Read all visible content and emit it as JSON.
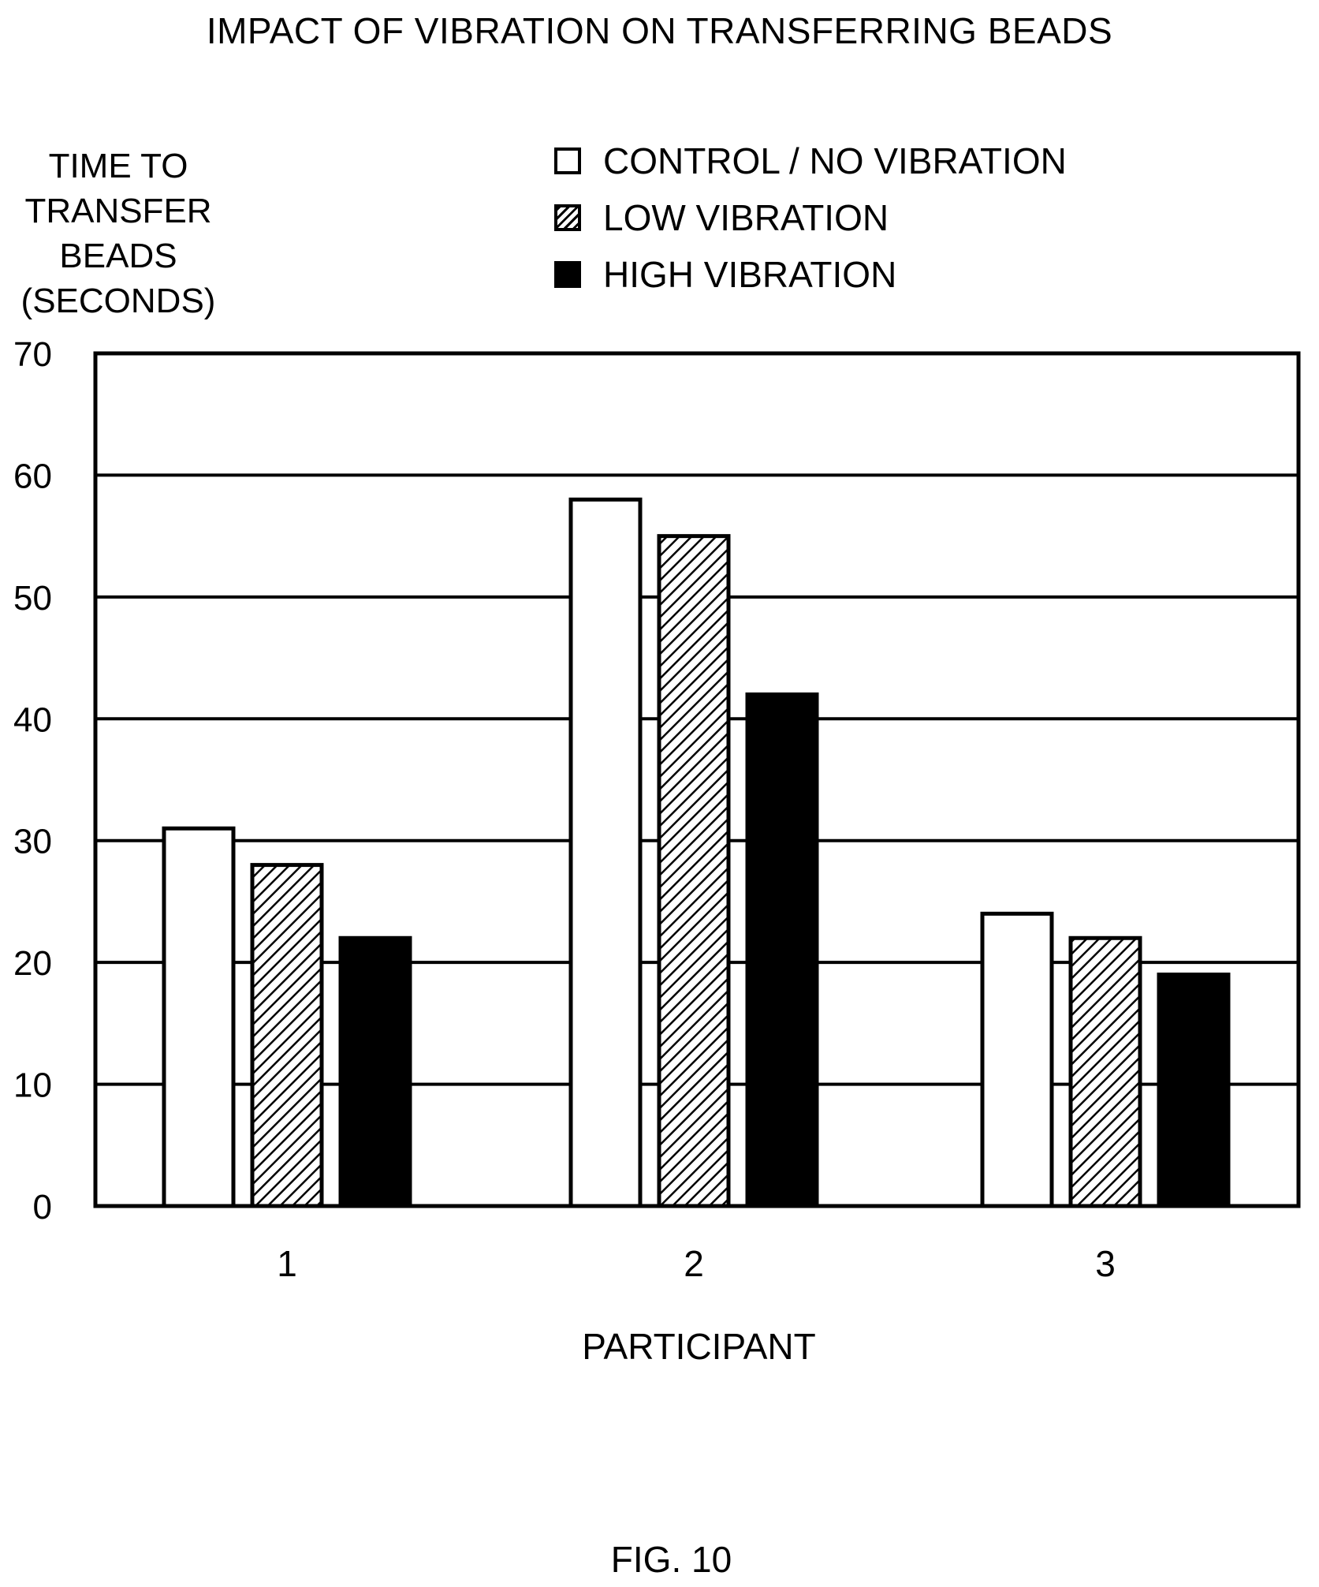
{
  "chart_data": {
    "type": "bar",
    "title": "IMPACT OF VIBRATION ON TRANSFERRING BEADS",
    "ylabel": "TIME TO\nTRANSFER\nBEADS\n(SECONDS)",
    "xlabel": "PARTICIPANT",
    "categories": [
      "1",
      "2",
      "3"
    ],
    "series": [
      {
        "name": "CONTROL / NO VIBRATION",
        "values": [
          31,
          58,
          24
        ],
        "fill": "white"
      },
      {
        "name": "LOW VIBRATION",
        "values": [
          28,
          55,
          22
        ],
        "fill": "hatched"
      },
      {
        "name": "HIGH VIBRATION",
        "values": [
          22,
          42,
          19
        ],
        "fill": "black"
      }
    ],
    "ylim": [
      0,
      70
    ],
    "yticks": [
      0,
      10,
      20,
      30,
      40,
      50,
      60,
      70
    ],
    "grid": true,
    "legend_position": "top"
  },
  "caption": "FIG. 10"
}
